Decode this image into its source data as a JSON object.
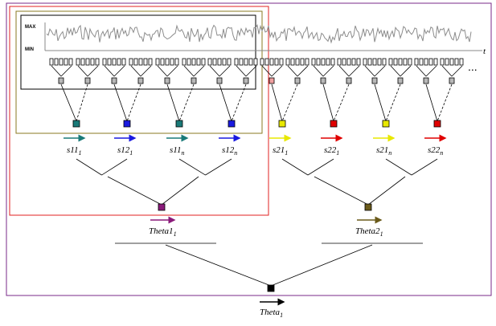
{
  "axis": {
    "max_label": "MAX",
    "min_label": "MIN",
    "time_label": "t"
  },
  "ellipsis": "...",
  "colors": {
    "outer_frame": "#7a2a8a",
    "red_frame": "#e02020",
    "olive_frame": "#8a7a20",
    "teal": "#1a7a78",
    "blue": "#1a1ae0",
    "yellow": "#ffff00",
    "red": "#e00000",
    "purple_node": "#8a1a7a",
    "olive_node": "#6a5a1a",
    "black": "#000000",
    "grey_node": "#b0b0b0"
  },
  "level1": [
    {
      "name": "s11",
      "sub": "1",
      "color": "#1a7a78"
    },
    {
      "name": "s12",
      "sub": "1",
      "color": "#1a1ae0"
    },
    {
      "name": "s11",
      "sub": "n",
      "color": "#1a7a78"
    },
    {
      "name": "s12",
      "sub": "n",
      "color": "#1a1ae0"
    },
    {
      "name": "s21",
      "sub": "1",
      "color": "#e8e800"
    },
    {
      "name": "s22",
      "sub": "1",
      "color": "#e00000"
    },
    {
      "name": "s21",
      "sub": "n",
      "color": "#e8e800"
    },
    {
      "name": "s22",
      "sub": "n",
      "color": "#e00000"
    }
  ],
  "level2": [
    {
      "name": "Theta1",
      "sub": "1",
      "color": "#8a1a7a"
    },
    {
      "name": "Theta2",
      "sub": "1",
      "color": "#6a5a1a"
    }
  ],
  "level3": {
    "name": "Theta",
    "sub": "1",
    "color": "#000000"
  }
}
